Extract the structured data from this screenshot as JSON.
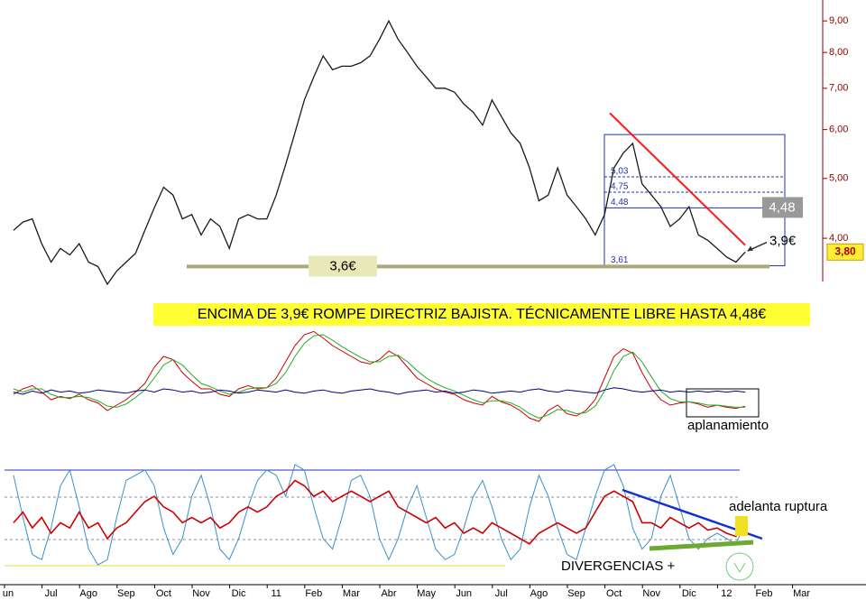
{
  "chart_data": [
    {
      "type": "line",
      "log_scale": true,
      "categories": [
        "un",
        null,
        null,
        null,
        "Jul",
        null,
        null,
        null,
        "Ago",
        null,
        null,
        null,
        "Sep",
        null,
        null,
        null,
        "Oct",
        null,
        null,
        null,
        "Nov",
        null,
        null,
        null,
        "Dic",
        null,
        null,
        null,
        "11",
        null,
        null,
        null,
        "Feb",
        null,
        null,
        null,
        "Mar",
        null,
        null,
        null,
        "Abr",
        null,
        null,
        null,
        "May",
        null,
        null,
        null,
        "Jun",
        null,
        null,
        null,
        "Jul",
        null,
        null,
        null,
        "Ago",
        null,
        null,
        null,
        "Sep",
        null,
        null,
        null,
        "Oct",
        null,
        null,
        null,
        "Nov",
        null,
        null,
        null,
        "Dic",
        null,
        null,
        null,
        "12",
        null,
        null,
        null,
        "Feb",
        null,
        null,
        null,
        "Mar",
        null,
        null,
        null
      ],
      "values": [
        4.12,
        4.25,
        4.3,
        3.92,
        3.66,
        3.85,
        3.76,
        3.92,
        3.66,
        3.6,
        3.37,
        3.54,
        3.66,
        3.78,
        4.12,
        4.48,
        4.84,
        4.7,
        4.3,
        4.37,
        4.05,
        4.3,
        4.18,
        3.85,
        4.3,
        4.37,
        4.3,
        4.3,
        4.7,
        5.26,
        5.93,
        6.7,
        7.3,
        7.9,
        7.5,
        7.6,
        7.6,
        7.7,
        7.9,
        8.4,
        9.0,
        8.4,
        8.0,
        7.6,
        7.3,
        7.0,
        7.0,
        6.9,
        6.6,
        6.4,
        6.1,
        6.7,
        6.3,
        5.93,
        5.7,
        5.2,
        4.6,
        4.7,
        5.2,
        4.7,
        4.5,
        4.3,
        4.05,
        4.37,
        5.2,
        5.5,
        5.7,
        4.9,
        4.7,
        4.5,
        4.18,
        4.3,
        4.5,
        4.05,
        3.97,
        3.85,
        3.73,
        3.66,
        3.8,
        null,
        null,
        null,
        null,
        null,
        null,
        null,
        null,
        null
      ],
      "color": "#1a1a1a",
      "ylim": [
        3.37,
        9.73
      ],
      "yticks": [
        {
          "value": 9,
          "label": "9,00"
        },
        {
          "value": 8,
          "label": "8,00"
        },
        {
          "value": 7,
          "label": "7,00"
        },
        {
          "value": 6,
          "label": "6,00"
        },
        {
          "value": 5,
          "label": "5,00"
        },
        {
          "value": 4,
          "label": "4,00"
        }
      ],
      "banner": "ENCIMA DE 3,9€ ROMPE DIRECTRIZ BAJISTA. TÉCNICAMENTE LIBRE HASTA 4,48€",
      "support": {
        "value": 3.6,
        "label": "3,6€"
      },
      "breakout": {
        "value": 3.9,
        "label": "3,9€"
      },
      "target": {
        "value": 4.48,
        "label": "4,48"
      },
      "last": {
        "value": 3.8,
        "label": "3,80"
      },
      "trendline_start": 6.38,
      "fib_high": 5.89,
      "fib_levels": [
        {
          "value": 3.61,
          "label": "3,61"
        },
        {
          "value": 4.48,
          "label": "4,48"
        },
        {
          "value": 4.75,
          "label": "4,75"
        },
        {
          "value": 5.03,
          "label": "5,03"
        }
      ]
    },
    {
      "type": "line",
      "ylim": [
        0,
        100
      ],
      "annotation": "aplanamiento",
      "series": [
        {
          "color": "#cc0000",
          "values": [
            40,
            45,
            48,
            42,
            35,
            38,
            36,
            40,
            35,
            32,
            25,
            30,
            35,
            42,
            50,
            65,
            75,
            72,
            60,
            52,
            45,
            45,
            40,
            38,
            45,
            48,
            45,
            46,
            55,
            70,
            85,
            95,
            98,
            92,
            85,
            80,
            75,
            70,
            68,
            72,
            80,
            75,
            65,
            55,
            50,
            45,
            42,
            40,
            35,
            32,
            30,
            38,
            33,
            30,
            25,
            18,
            15,
            25,
            30,
            22,
            20,
            25,
            35,
            55,
            75,
            82,
            78,
            60,
            45,
            35,
            30,
            32,
            33,
            31,
            28,
            30,
            28,
            27,
            29,
            null,
            null,
            null,
            null,
            null,
            null,
            null,
            null,
            null
          ]
        },
        {
          "color": "#22aa22",
          "values": [
            45,
            42,
            45,
            45,
            40,
            37,
            37,
            38,
            37,
            34,
            29,
            28,
            31,
            37,
            44,
            55,
            67,
            72,
            67,
            58,
            50,
            47,
            43,
            40,
            42,
            45,
            46,
            46,
            50,
            60,
            75,
            87,
            94,
            95,
            90,
            84,
            79,
            74,
            70,
            70,
            75,
            76,
            70,
            62,
            55,
            50,
            46,
            43,
            39,
            35,
            32,
            34,
            34,
            32,
            28,
            22,
            18,
            21,
            26,
            25,
            22,
            23,
            29,
            43,
            62,
            75,
            79,
            70,
            56,
            43,
            36,
            33,
            33,
            32,
            30,
            30,
            29,
            28,
            28,
            null,
            null,
            null,
            null,
            null,
            null,
            null,
            null,
            null
          ]
        },
        {
          "color": "#000080",
          "values": [
            42,
            40,
            43,
            41,
            44,
            42,
            43,
            41,
            42,
            44,
            43,
            42,
            41,
            43,
            44,
            42,
            45,
            44,
            42,
            43,
            41,
            42,
            44,
            43,
            41,
            42,
            44,
            43,
            42,
            44,
            42,
            41,
            43,
            44,
            42,
            41,
            43,
            44,
            45,
            43,
            42,
            40,
            42,
            43,
            44,
            42,
            43,
            41,
            42,
            44,
            43,
            41,
            42,
            43,
            42,
            44,
            45,
            43,
            42,
            44,
            43,
            42,
            41,
            44,
            46,
            45,
            43,
            42,
            43,
            44,
            42,
            43,
            42,
            43,
            42,
            43,
            42,
            43,
            42,
            null,
            null,
            null,
            null,
            null,
            null,
            null,
            null,
            null
          ]
        }
      ]
    },
    {
      "type": "line",
      "ylim": [
        0,
        100
      ],
      "annotations": [
        "adelanta ruptura",
        "DIVERGENCIAS +"
      ],
      "series": [
        {
          "color": "#3a8fc8",
          "values": [
            90,
            50,
            15,
            10,
            40,
            80,
            95,
            60,
            20,
            5,
            10,
            50,
            85,
            90,
            95,
            80,
            40,
            15,
            30,
            70,
            90,
            60,
            20,
            10,
            30,
            60,
            85,
            95,
            90,
            70,
            100,
            95,
            60,
            30,
            20,
            50,
            85,
            90,
            70,
            30,
            10,
            30,
            60,
            80,
            50,
            20,
            10,
            15,
            40,
            70,
            85,
            60,
            30,
            10,
            20,
            60,
            90,
            70,
            40,
            15,
            10,
            40,
            70,
            95,
            100,
            80,
            40,
            20,
            30,
            70,
            90,
            60,
            30,
            20,
            30,
            35,
            30,
            25,
            45,
            null,
            null,
            null,
            null,
            null,
            null,
            null,
            null,
            null
          ]
        },
        {
          "color": "#cc0000",
          "values": [
            45,
            55,
            40,
            50,
            35,
            45,
            40,
            55,
            40,
            45,
            30,
            40,
            45,
            55,
            65,
            70,
            60,
            55,
            45,
            50,
            45,
            50,
            40,
            45,
            55,
            60,
            55,
            60,
            70,
            75,
            85,
            80,
            70,
            75,
            65,
            70,
            75,
            70,
            65,
            70,
            75,
            60,
            55,
            50,
            45,
            50,
            40,
            45,
            35,
            40,
            35,
            45,
            40,
            35,
            30,
            25,
            35,
            40,
            45,
            40,
            35,
            40,
            55,
            70,
            75,
            70,
            65,
            45,
            45,
            40,
            50,
            45,
            40,
            45,
            38,
            40,
            35,
            32,
            45,
            null,
            null,
            null,
            null,
            null,
            null,
            null,
            null,
            null
          ]
        }
      ]
    }
  ]
}
